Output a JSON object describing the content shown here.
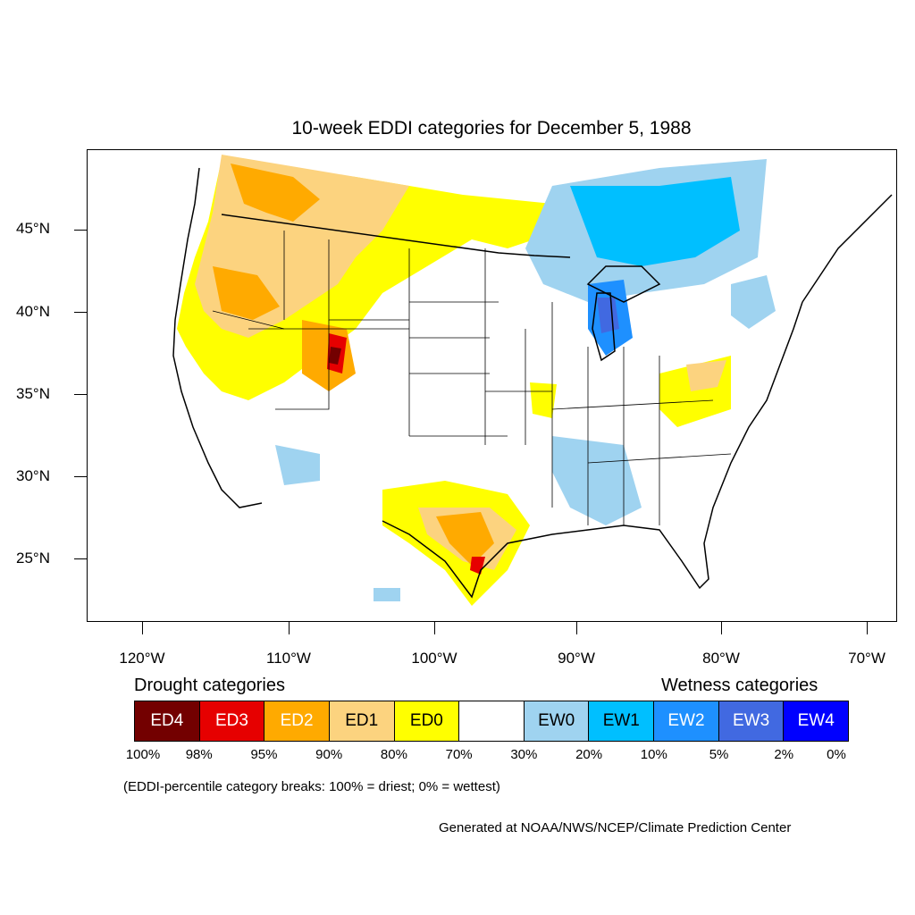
{
  "title": "10-week EDDI categories for December 5, 1988",
  "lat_labels": [
    "45°N",
    "40°N",
    "35°N",
    "30°N",
    "25°N"
  ],
  "lon_labels": [
    "120°W",
    "110°W",
    "100°W",
    "90°W",
    "80°W",
    "70°W"
  ],
  "legend": {
    "drought_heading": "Drought categories",
    "wetness_heading": "Wetness categories",
    "categories": [
      {
        "label": "ED4",
        "color": "#730000",
        "text_color": "#ffffff"
      },
      {
        "label": "ED3",
        "color": "#e60000",
        "text_color": "#ffffff"
      },
      {
        "label": "ED2",
        "color": "#ffaa00",
        "text_color": "#ffffff"
      },
      {
        "label": "ED1",
        "color": "#fcd37f",
        "text_color": "#000000"
      },
      {
        "label": "ED0",
        "color": "#ffff00",
        "text_color": "#000000"
      },
      {
        "label": "",
        "color": "#ffffff",
        "text_color": "#000000"
      },
      {
        "label": "EW0",
        "color": "#9fd3f0",
        "text_color": "#000000"
      },
      {
        "label": "EW1",
        "color": "#00bfff",
        "text_color": "#000000"
      },
      {
        "label": "EW2",
        "color": "#1e90ff",
        "text_color": "#ffffff"
      },
      {
        "label": "EW3",
        "color": "#4169e1",
        "text_color": "#ffffff"
      },
      {
        "label": "EW4",
        "color": "#0000ff",
        "text_color": "#ffffff"
      }
    ],
    "percent_breaks": [
      "100%",
      "98%",
      "95%",
      "90%",
      "80%",
      "70%",
      "30%",
      "20%",
      "10%",
      "5%",
      "2%",
      "0%"
    ]
  },
  "note": "(EDDI-percentile category breaks: 100% = driest; 0% = wettest)",
  "credit": "Generated at NOAA/NWS/NCEP/Climate Prediction Center"
}
